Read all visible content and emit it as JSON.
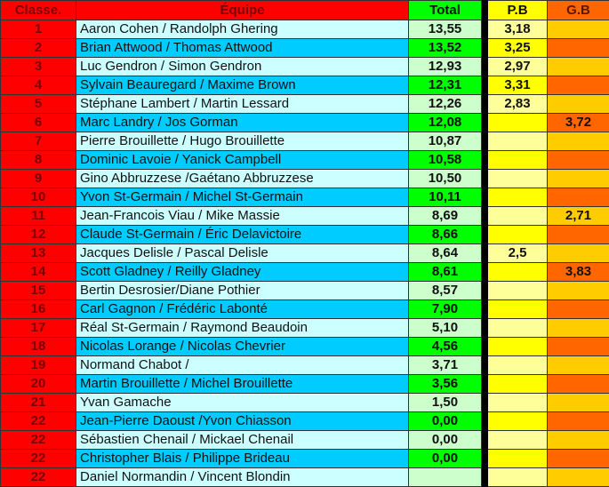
{
  "headers": {
    "rank": "Classe.",
    "team": "Équipe",
    "total": "Total",
    "pb": "P.B",
    "gb": "G.B"
  },
  "colors": {
    "rank": "#ff0000",
    "team_odd": "#ccffff",
    "team_even": "#00ccff",
    "total_odd": "#ccffcc",
    "total_even": "#00ff00",
    "pb_odd": "#ffff99",
    "pb_even": "#ffff00",
    "gb_odd": "#ffcc00",
    "gb_even": "#ff6600"
  },
  "rows": [
    {
      "rank": "1",
      "team": "Aaron Cohen / Randolph Ghering",
      "total": "13,55",
      "pb": "3,18",
      "gb": ""
    },
    {
      "rank": "2",
      "team": "Brian Attwood / Thomas Attwood",
      "total": "13,52",
      "pb": "3,25",
      "gb": ""
    },
    {
      "rank": "3",
      "team": "Luc Gendron / Simon Gendron",
      "total": "12,93",
      "pb": "2,97",
      "gb": ""
    },
    {
      "rank": "4",
      "team": "Sylvain Beauregard / Maxime Brown",
      "total": "12,31",
      "pb": "3,31",
      "gb": ""
    },
    {
      "rank": "5",
      "team": "Stéphane Lambert / Martin Lessard",
      "total": "12,26",
      "pb": "2,83",
      "gb": ""
    },
    {
      "rank": "6",
      "team": "Marc Landry / Jos Gorman",
      "total": "12,08",
      "pb": "",
      "gb": "3,72"
    },
    {
      "rank": "7",
      "team": "Pierre Brouillette / Hugo Brouillette",
      "total": "10,87",
      "pb": "",
      "gb": ""
    },
    {
      "rank": "8",
      "team": "Dominic Lavoie / Yanick Campbell",
      "total": "10,58",
      "pb": "",
      "gb": ""
    },
    {
      "rank": "9",
      "team": "Gino Abbruzzese /Gaétano Abbruzzese",
      "total": "10,50",
      "pb": "",
      "gb": ""
    },
    {
      "rank": "10",
      "team": "Yvon St-Germain / Michel St-Germain",
      "total": "10,11",
      "pb": "",
      "gb": ""
    },
    {
      "rank": "11",
      "team": "Jean-Francois Viau / Mike Massie",
      "total": "8,69",
      "pb": "",
      "gb": "2,71"
    },
    {
      "rank": "12",
      "team": "Claude St-Germain / Éric Delavictoire",
      "total": "8,66",
      "pb": "",
      "gb": ""
    },
    {
      "rank": "13",
      "team": "Jacques Delisle / Pascal Delisle",
      "total": "8,64",
      "pb": "2,5",
      "gb": ""
    },
    {
      "rank": "14",
      "team": "Scott Gladney / Reilly Gladney",
      "total": "8,61",
      "pb": "",
      "gb": "3,83"
    },
    {
      "rank": "15",
      "team": "Bertin Desrosier/Diane Pothier",
      "total": "8,57",
      "pb": "",
      "gb": ""
    },
    {
      "rank": "16",
      "team": "Carl Gagnon / Frédéric Labonté",
      "total": "7,90",
      "pb": "",
      "gb": ""
    },
    {
      "rank": "17",
      "team": "Réal St-Germain / Raymond Beaudoin",
      "total": "5,10",
      "pb": "",
      "gb": ""
    },
    {
      "rank": "18",
      "team": "Nicolas Lorange / Nicolas Chevrier",
      "total": "4,56",
      "pb": "",
      "gb": ""
    },
    {
      "rank": "19",
      "team": "Normand Chabot /",
      "total": "3,71",
      "pb": "",
      "gb": ""
    },
    {
      "rank": "20",
      "team": "Martin Brouillette / Michel Brouillette",
      "total": "3,56",
      "pb": "",
      "gb": ""
    },
    {
      "rank": "21",
      "team": "Yvan Gamache",
      "total": "1,50",
      "pb": "",
      "gb": ""
    },
    {
      "rank": "22",
      "team": "Jean-Pierre Daoust /Yvon Chiasson",
      "total": "0,00",
      "pb": "",
      "gb": ""
    },
    {
      "rank": "22",
      "team": "Sébastien Chenail / Mickael Chenail",
      "total": "0,00",
      "pb": "",
      "gb": ""
    },
    {
      "rank": "22",
      "team": "Christopher Blais / Philippe Brideau",
      "total": "0,00",
      "pb": "",
      "gb": ""
    },
    {
      "rank": "22",
      "team": "Daniel Normandin / Vincent Blondin",
      "total": "",
      "pb": "",
      "gb": ""
    }
  ]
}
